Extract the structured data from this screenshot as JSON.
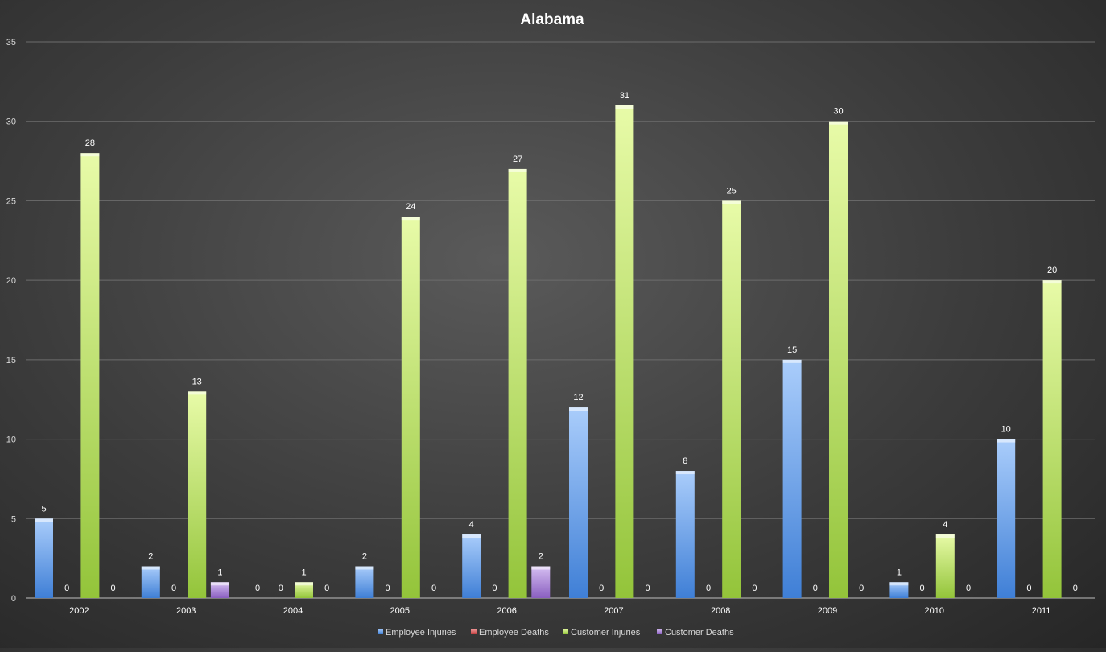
{
  "chart_data": {
    "type": "bar",
    "title": "Alabama",
    "categories": [
      "2002",
      "2003",
      "2004",
      "2005",
      "2006",
      "2007",
      "2008",
      "2009",
      "2010",
      "2011"
    ],
    "series": [
      {
        "name": "Employee Injuries",
        "color": "#6ea5f0",
        "values": [
          5,
          2,
          0,
          2,
          4,
          12,
          8,
          15,
          1,
          10
        ]
      },
      {
        "name": "Employee Deaths",
        "color": "#e06666",
        "values": [
          0,
          0,
          0,
          0,
          0,
          0,
          0,
          0,
          0,
          0
        ]
      },
      {
        "name": "Customer Injuries",
        "color": "#b5e05a",
        "values": [
          28,
          13,
          1,
          24,
          27,
          31,
          25,
          30,
          4,
          20
        ]
      },
      {
        "name": "Customer Deaths",
        "color": "#a57fd0",
        "values": [
          0,
          1,
          0,
          0,
          2,
          0,
          0,
          0,
          0,
          0
        ]
      }
    ],
    "ylim": [
      0,
      35
    ],
    "yticks": [
      0,
      5,
      10,
      15,
      20,
      25,
      30,
      35
    ],
    "grid": true,
    "legend": "bottom",
    "data_labels": true
  }
}
